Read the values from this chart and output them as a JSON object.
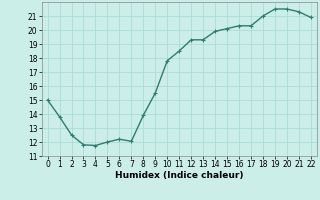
{
  "x": [
    0,
    1,
    2,
    3,
    4,
    5,
    6,
    7,
    8,
    9,
    10,
    11,
    12,
    13,
    14,
    15,
    16,
    17,
    18,
    19,
    20,
    21,
    22
  ],
  "y": [
    15.0,
    13.8,
    12.5,
    11.8,
    11.75,
    12.0,
    12.2,
    12.05,
    13.9,
    15.5,
    17.8,
    18.5,
    19.3,
    19.3,
    19.9,
    20.1,
    20.3,
    20.3,
    21.0,
    21.5,
    21.5,
    21.3,
    20.9
  ],
  "line_color": "#2e7d6e",
  "marker": "+",
  "bg_color": "#cceee8",
  "grid_color": "#aaddd5",
  "xlabel": "Humidex (Indice chaleur)",
  "ylim": [
    11,
    22
  ],
  "xlim": [
    -0.5,
    22.5
  ],
  "yticks": [
    11,
    12,
    13,
    14,
    15,
    16,
    17,
    18,
    19,
    20,
    21
  ],
  "xticks": [
    0,
    1,
    2,
    3,
    4,
    5,
    6,
    7,
    8,
    9,
    10,
    11,
    12,
    13,
    14,
    15,
    16,
    17,
    18,
    19,
    20,
    21,
    22
  ],
  "label_fontsize": 6.5,
  "tick_fontsize": 5.5,
  "line_width": 1.0,
  "marker_size": 3,
  "marker_ew": 0.8
}
